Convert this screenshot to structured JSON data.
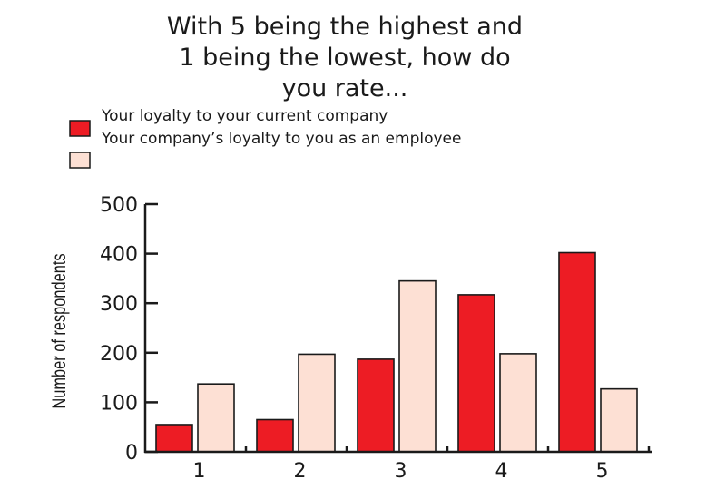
{
  "chart_data": {
    "type": "bar",
    "title": [
      "With 5 being the highest and",
      "1 being the lowest, how do",
      "you rate..."
    ],
    "xlabel": "",
    "ylabel": "Number of respondents",
    "categories": [
      "1",
      "2",
      "3",
      "4",
      "5"
    ],
    "ylim": [
      0,
      500
    ],
    "yticks": [
      0,
      100,
      200,
      300,
      400,
      500
    ],
    "grid": false,
    "legend_position": "top-left",
    "series": [
      {
        "name": "Your loyalty to your current company",
        "color": "#ed1c24",
        "values": [
          55,
          65,
          187,
          317,
          402
        ]
      },
      {
        "name": "Your company’s loyalty to you as an employee",
        "color": "#fde0d4",
        "values": [
          137,
          197,
          345,
          198,
          127
        ]
      }
    ]
  }
}
